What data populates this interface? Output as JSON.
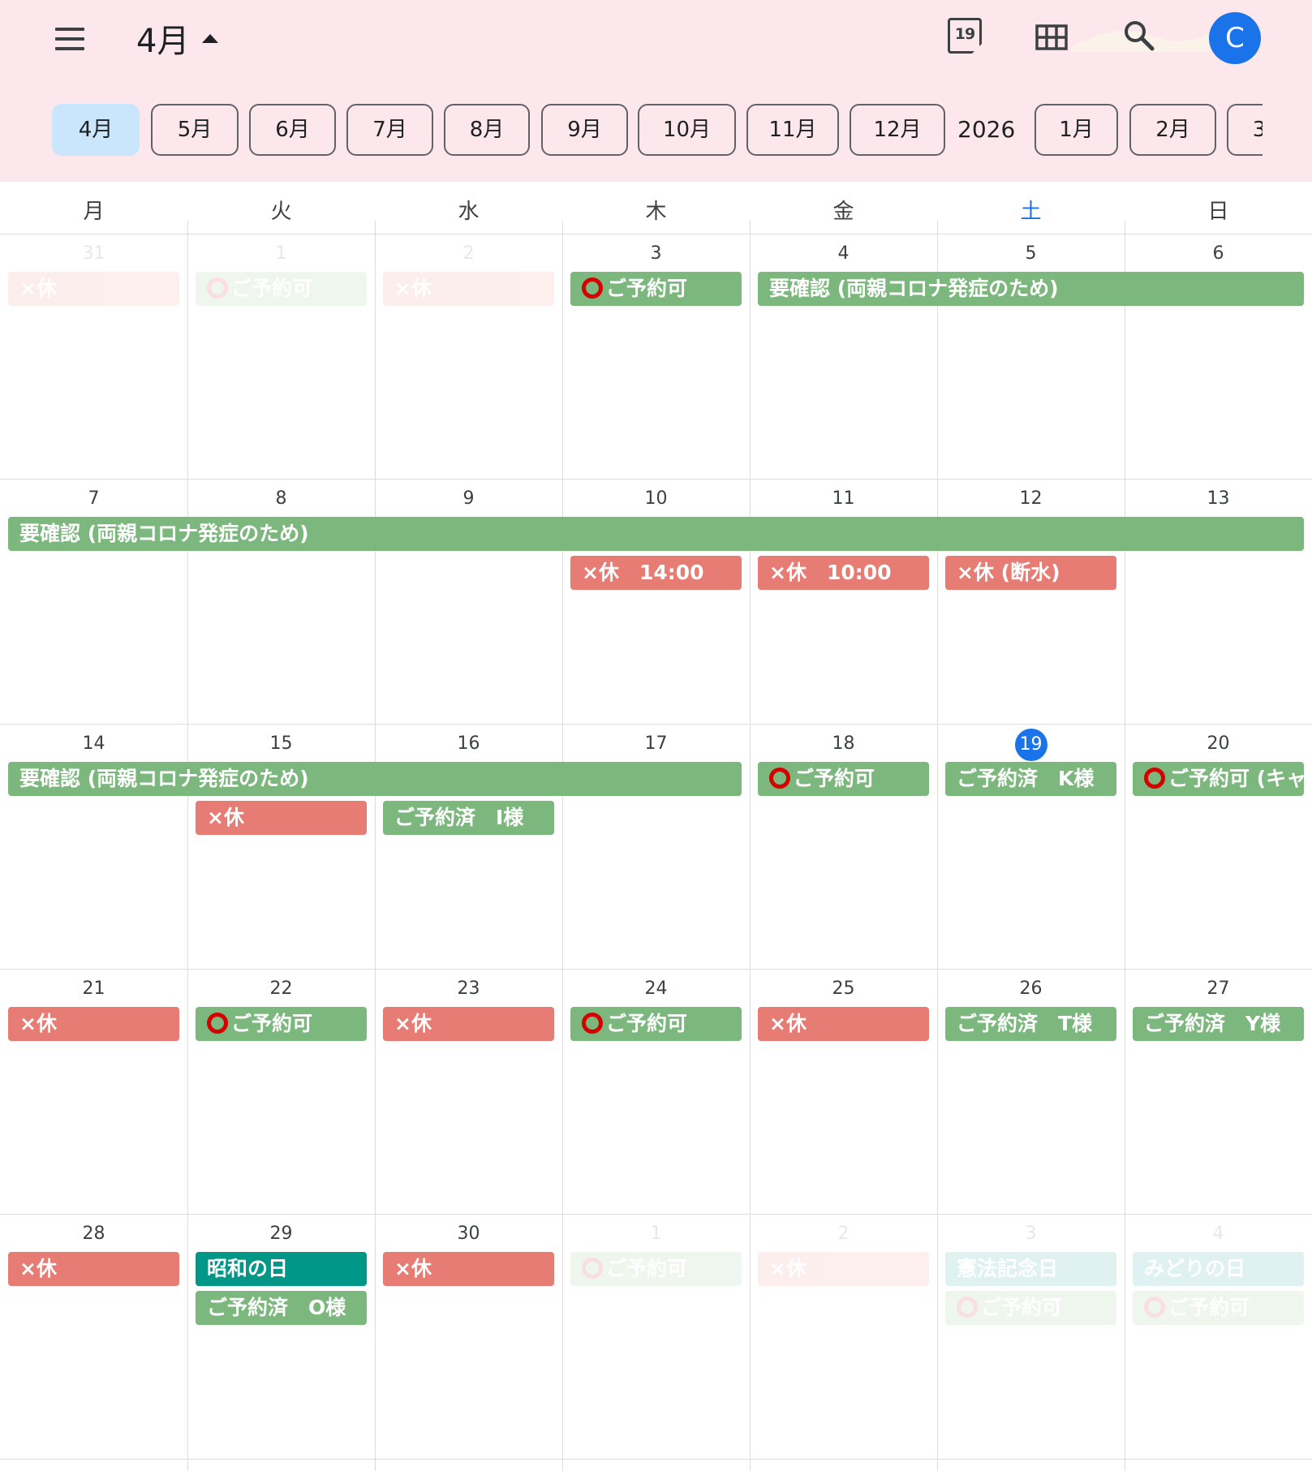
{
  "header": {
    "month_title": "4月",
    "today_day": "19",
    "avatar_initial": "C",
    "chips": [
      {
        "label": "4月",
        "active": true
      },
      {
        "label": "5月"
      },
      {
        "label": "6月"
      },
      {
        "label": "7月"
      },
      {
        "label": "8月"
      },
      {
        "label": "9月"
      },
      {
        "label": "10月"
      },
      {
        "label": "11月"
      },
      {
        "label": "12月"
      },
      {
        "label": "2026",
        "year": true
      },
      {
        "label": "1月"
      },
      {
        "label": "2月"
      },
      {
        "label": "3"
      }
    ]
  },
  "weekdays": [
    "月",
    "火",
    "水",
    "木",
    "金",
    "土",
    "日"
  ],
  "weeks": [
    [
      "31",
      "1",
      "2",
      "3",
      "4",
      "5",
      "6"
    ],
    [
      "7",
      "8",
      "9",
      "10",
      "11",
      "12",
      "13"
    ],
    [
      "14",
      "15",
      "16",
      "17",
      "18",
      "19",
      "20"
    ],
    [
      "21",
      "22",
      "23",
      "24",
      "25",
      "26",
      "27"
    ],
    [
      "28",
      "29",
      "30",
      "1",
      "2",
      "3",
      "4"
    ]
  ],
  "colors": {
    "available": "#7cb87e",
    "closed": "#e67c73",
    "holiday": "#009688",
    "today": "#1a73e8",
    "ring": "#d50000"
  },
  "events": [
    {
      "week": 0,
      "col": 0,
      "span": 1,
      "row": 0,
      "color": "red",
      "text": "×休",
      "faded": true
    },
    {
      "week": 0,
      "col": 1,
      "span": 1,
      "row": 0,
      "color": "green",
      "text": "ご予約可",
      "ring": true,
      "faded": true
    },
    {
      "week": 0,
      "col": 2,
      "span": 1,
      "row": 0,
      "color": "red",
      "text": "×休",
      "faded": true
    },
    {
      "week": 0,
      "col": 3,
      "span": 1,
      "row": 0,
      "color": "green",
      "text": "ご予約可",
      "ring": true
    },
    {
      "week": 0,
      "col": 4,
      "span": 3,
      "row": 0,
      "color": "green",
      "text": "要確認 (両親コロナ発症のため)"
    },
    {
      "week": 1,
      "col": 0,
      "span": 7,
      "row": 0,
      "color": "green",
      "text": "要確認 (両親コロナ発症のため)"
    },
    {
      "week": 1,
      "col": 3,
      "span": 1,
      "row": 1,
      "color": "red",
      "text": "×休　14:00"
    },
    {
      "week": 1,
      "col": 4,
      "span": 1,
      "row": 1,
      "color": "red",
      "text": "×休　10:00"
    },
    {
      "week": 1,
      "col": 5,
      "span": 1,
      "row": 1,
      "color": "red",
      "text": "×休 (断水)"
    },
    {
      "week": 2,
      "col": 0,
      "span": 4,
      "row": 0,
      "color": "green",
      "text": "要確認 (両親コロナ発症のため)"
    },
    {
      "week": 2,
      "col": 4,
      "span": 1,
      "row": 0,
      "color": "green",
      "text": "ご予約可",
      "ring": true
    },
    {
      "week": 2,
      "col": 5,
      "span": 1,
      "row": 0,
      "color": "green",
      "text": "ご予約済　K様"
    },
    {
      "week": 2,
      "col": 6,
      "span": 1,
      "row": 0,
      "color": "green",
      "text": "ご予約可 (キャ",
      "ring": true
    },
    {
      "week": 2,
      "col": 1,
      "span": 1,
      "row": 1,
      "color": "red",
      "text": "×休"
    },
    {
      "week": 2,
      "col": 2,
      "span": 1,
      "row": 1,
      "color": "green",
      "text": "ご予約済　I様"
    },
    {
      "week": 3,
      "col": 0,
      "span": 1,
      "row": 0,
      "color": "red",
      "text": "×休"
    },
    {
      "week": 3,
      "col": 1,
      "span": 1,
      "row": 0,
      "color": "green",
      "text": "ご予約可",
      "ring": true
    },
    {
      "week": 3,
      "col": 2,
      "span": 1,
      "row": 0,
      "color": "red",
      "text": "×休"
    },
    {
      "week": 3,
      "col": 3,
      "span": 1,
      "row": 0,
      "color": "green",
      "text": "ご予約可",
      "ring": true
    },
    {
      "week": 3,
      "col": 4,
      "span": 1,
      "row": 0,
      "color": "red",
      "text": "×休"
    },
    {
      "week": 3,
      "col": 5,
      "span": 1,
      "row": 0,
      "color": "green",
      "text": "ご予約済　T様"
    },
    {
      "week": 3,
      "col": 6,
      "span": 1,
      "row": 0,
      "color": "green",
      "text": "ご予約済　Y様"
    },
    {
      "week": 4,
      "col": 0,
      "span": 1,
      "row": 0,
      "color": "red",
      "text": "×休"
    },
    {
      "week": 4,
      "col": 1,
      "span": 1,
      "row": 0,
      "color": "teal",
      "text": "昭和の日"
    },
    {
      "week": 4,
      "col": 1,
      "span": 1,
      "row": 1,
      "color": "green",
      "text": "ご予約済　O様"
    },
    {
      "week": 4,
      "col": 2,
      "span": 1,
      "row": 0,
      "color": "red",
      "text": "×休"
    },
    {
      "week": 4,
      "col": 3,
      "span": 1,
      "row": 0,
      "color": "green",
      "text": "ご予約可",
      "ring": true,
      "faded": true
    },
    {
      "week": 4,
      "col": 4,
      "span": 1,
      "row": 0,
      "color": "red",
      "text": "×休",
      "faded": true
    },
    {
      "week": 4,
      "col": 5,
      "span": 1,
      "row": 0,
      "color": "teal",
      "text": "憲法記念日",
      "faded": true
    },
    {
      "week": 4,
      "col": 5,
      "span": 1,
      "row": 1,
      "color": "green",
      "text": "ご予約可",
      "ring": true,
      "faded": true
    },
    {
      "week": 4,
      "col": 6,
      "span": 1,
      "row": 0,
      "color": "teal",
      "text": "みどりの日",
      "faded": true
    },
    {
      "week": 4,
      "col": 6,
      "span": 1,
      "row": 1,
      "color": "green",
      "text": "ご予約可",
      "ring": true,
      "faded": true
    }
  ],
  "today": {
    "week": 2,
    "col": 5
  },
  "faded_days": [
    [
      0,
      0
    ],
    [
      0,
      1
    ],
    [
      0,
      2
    ],
    [
      4,
      3
    ],
    [
      4,
      4
    ],
    [
      4,
      5
    ],
    [
      4,
      6
    ]
  ]
}
